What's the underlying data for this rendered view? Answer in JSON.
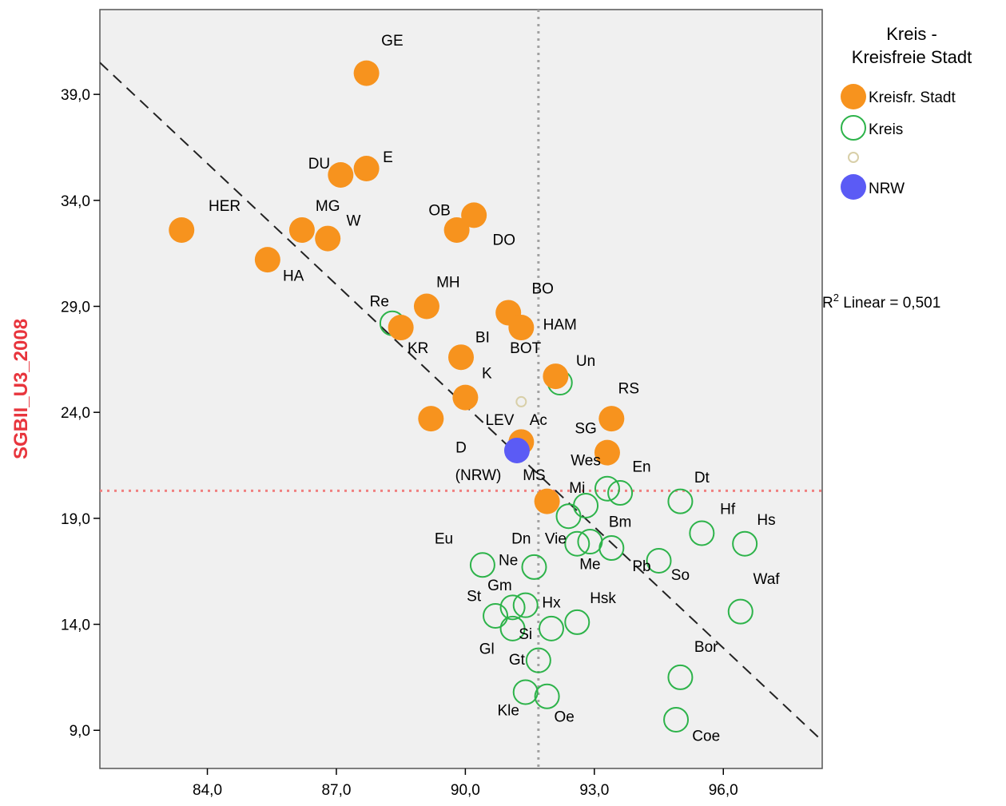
{
  "chart_data": {
    "type": "scatter",
    "title": "",
    "xlabel": "",
    "ylabel": "SGBII_U3_2008",
    "xlim": [
      81.5,
      98.3
    ],
    "ylim": [
      7.2,
      43.0
    ],
    "xticks": [
      "84,0",
      "87,0",
      "90,0",
      "93,0",
      "96,0"
    ],
    "xtick_values": [
      84,
      87,
      90,
      93,
      96
    ],
    "yticks": [
      "9,0",
      "14,0",
      "19,0",
      "24,0",
      "29,0",
      "34,0",
      "39,0"
    ],
    "ytick_values": [
      9,
      14,
      19,
      24,
      29,
      34,
      39
    ],
    "reference_lines": {
      "x_mean": 91.7,
      "y_mean": 20.3
    },
    "fit_line": {
      "label": "R² Linear = 0,501",
      "from": [
        81.5,
        40.5
      ],
      "to": [
        98.3,
        8.5
      ]
    },
    "legend": {
      "title_line1": "Kreis -",
      "title_line2": "Kreisfreie Stadt",
      "placement": "top-right",
      "entries": [
        {
          "label": "Kreisfr. Stadt",
          "marker": "filled",
          "color": "#f7931e"
        },
        {
          "label": "Kreis",
          "marker": "hollow",
          "color": "#2db34a"
        },
        {
          "label": "",
          "marker": "hollow-small",
          "color": "#d8cfa8"
        },
        {
          "label": "NRW",
          "marker": "filled",
          "color": "#5b5bf5"
        }
      ]
    },
    "colors": {
      "stadt": "#f7931e",
      "kreis": "#2db34a",
      "blank": "#d8cfa8",
      "nrw": "#5b5bf5",
      "y_ref": "#f08080",
      "x_ref": "#a0a0a0",
      "ylabel": "#e8353d",
      "plot_bg": "#f0f0f0"
    },
    "series": [
      {
        "name": "Kreisfr. Stadt",
        "points": [
          {
            "x": 87.7,
            "y": 40.0
          },
          {
            "x": 87.7,
            "y": 35.5
          },
          {
            "x": 87.1,
            "y": 35.2
          },
          {
            "x": 83.4,
            "y": 32.6
          },
          {
            "x": 86.2,
            "y": 32.6
          },
          {
            "x": 86.8,
            "y": 32.2
          },
          {
            "x": 85.4,
            "y": 31.2
          },
          {
            "x": 89.8,
            "y": 32.6
          },
          {
            "x": 90.2,
            "y": 33.3
          },
          {
            "x": 89.1,
            "y": 29.0
          },
          {
            "x": 91.0,
            "y": 28.7
          },
          {
            "x": 91.3,
            "y": 28.0
          },
          {
            "x": 88.5,
            "y": 28.0
          },
          {
            "x": 89.9,
            "y": 26.6
          },
          {
            "x": 92.1,
            "y": 25.7
          },
          {
            "x": 90.0,
            "y": 24.7
          },
          {
            "x": 89.2,
            "y": 23.7
          },
          {
            "x": 93.4,
            "y": 23.7
          },
          {
            "x": 91.3,
            "y": 22.6
          },
          {
            "x": 93.3,
            "y": 22.1
          },
          {
            "x": 91.9,
            "y": 19.8
          }
        ]
      },
      {
        "name": "Kreis",
        "points": [
          {
            "x": 88.3,
            "y": 28.2
          },
          {
            "x": 92.2,
            "y": 25.4
          },
          {
            "x": 93.3,
            "y": 20.4
          },
          {
            "x": 93.6,
            "y": 20.2
          },
          {
            "x": 92.8,
            "y": 19.6
          },
          {
            "x": 92.4,
            "y": 19.1
          },
          {
            "x": 95.0,
            "y": 19.8
          },
          {
            "x": 95.5,
            "y": 18.3
          },
          {
            "x": 96.5,
            "y": 17.8
          },
          {
            "x": 92.9,
            "y": 17.9
          },
          {
            "x": 92.6,
            "y": 17.8
          },
          {
            "x": 93.4,
            "y": 17.6
          },
          {
            "x": 94.5,
            "y": 17.0
          },
          {
            "x": 90.4,
            "y": 16.8
          },
          {
            "x": 91.6,
            "y": 16.7
          },
          {
            "x": 90.7,
            "y": 14.4
          },
          {
            "x": 91.1,
            "y": 14.8
          },
          {
            "x": 91.4,
            "y": 14.9
          },
          {
            "x": 91.1,
            "y": 13.8
          },
          {
            "x": 92.0,
            "y": 13.8
          },
          {
            "x": 92.6,
            "y": 14.1
          },
          {
            "x": 96.4,
            "y": 14.6
          },
          {
            "x": 91.7,
            "y": 12.3
          },
          {
            "x": 91.4,
            "y": 10.8
          },
          {
            "x": 91.9,
            "y": 10.6
          },
          {
            "x": 95.0,
            "y": 11.5
          },
          {
            "x": 94.9,
            "y": 9.5
          }
        ]
      },
      {
        "name": "",
        "points": [
          {
            "x": 91.3,
            "y": 24.5
          }
        ]
      },
      {
        "name": "NRW",
        "points": [
          {
            "x": 91.2,
            "y": 22.2
          }
        ]
      }
    ],
    "point_labels": [
      {
        "text": "GE",
        "x": 88.3,
        "y": 41.3
      },
      {
        "text": "E",
        "x": 88.2,
        "y": 35.8
      },
      {
        "text": "DU",
        "x": 86.6,
        "y": 35.5
      },
      {
        "text": "HER",
        "x": 84.4,
        "y": 33.5
      },
      {
        "text": "MG",
        "x": 86.8,
        "y": 33.5
      },
      {
        "text": "W",
        "x": 87.4,
        "y": 32.8
      },
      {
        "text": "HA",
        "x": 86.0,
        "y": 30.2
      },
      {
        "text": "OB",
        "x": 89.4,
        "y": 33.3
      },
      {
        "text": "DO",
        "x": 90.9,
        "y": 31.9
      },
      {
        "text": "MH",
        "x": 89.6,
        "y": 29.9
      },
      {
        "text": "BO",
        "x": 91.8,
        "y": 29.6
      },
      {
        "text": "HAM",
        "x": 92.2,
        "y": 27.9
      },
      {
        "text": "Re",
        "x": 88.0,
        "y": 29.0
      },
      {
        "text": "KR",
        "x": 88.9,
        "y": 26.8
      },
      {
        "text": "BI",
        "x": 90.4,
        "y": 27.3
      },
      {
        "text": "BOT",
        "x": 91.4,
        "y": 26.8
      },
      {
        "text": "Un",
        "x": 92.8,
        "y": 26.2
      },
      {
        "text": "K",
        "x": 90.5,
        "y": 25.6
      },
      {
        "text": "RS",
        "x": 93.8,
        "y": 24.9
      },
      {
        "text": "LEV",
        "x": 90.8,
        "y": 23.4
      },
      {
        "text": "Ac",
        "x": 91.7,
        "y": 23.4
      },
      {
        "text": "SG",
        "x": 92.8,
        "y": 23.0
      },
      {
        "text": "D",
        "x": 89.9,
        "y": 22.1
      },
      {
        "text": "Wes",
        "x": 92.8,
        "y": 21.5
      },
      {
        "text": "(NRW)",
        "x": 90.3,
        "y": 20.8
      },
      {
        "text": "MS",
        "x": 91.6,
        "y": 20.8
      },
      {
        "text": "En",
        "x": 94.1,
        "y": 21.2
      },
      {
        "text": "Mi",
        "x": 92.6,
        "y": 20.2
      },
      {
        "text": "Dt",
        "x": 95.5,
        "y": 20.7
      },
      {
        "text": "Hf",
        "x": 96.1,
        "y": 19.2
      },
      {
        "text": "Hs",
        "x": 97.0,
        "y": 18.7
      },
      {
        "text": "Bm",
        "x": 93.6,
        "y": 18.6
      },
      {
        "text": "Eu",
        "x": 89.5,
        "y": 17.8
      },
      {
        "text": "Dn",
        "x": 91.3,
        "y": 17.8
      },
      {
        "text": "Vie",
        "x": 92.1,
        "y": 17.8
      },
      {
        "text": "Ne",
        "x": 91.0,
        "y": 16.8
      },
      {
        "text": "Me",
        "x": 92.9,
        "y": 16.6
      },
      {
        "text": "Pb",
        "x": 94.1,
        "y": 16.5
      },
      {
        "text": "So",
        "x": 95.0,
        "y": 16.1
      },
      {
        "text": "Waf",
        "x": 97.0,
        "y": 15.9
      },
      {
        "text": "St",
        "x": 90.2,
        "y": 15.1
      },
      {
        "text": "Gm",
        "x": 90.8,
        "y": 15.6
      },
      {
        "text": "Hx",
        "x": 92.0,
        "y": 14.8
      },
      {
        "text": "Hsk",
        "x": 93.2,
        "y": 15.0
      },
      {
        "text": "Si",
        "x": 91.4,
        "y": 13.3
      },
      {
        "text": "Gl",
        "x": 90.5,
        "y": 12.6
      },
      {
        "text": "Gt",
        "x": 91.2,
        "y": 12.1
      },
      {
        "text": "Bor",
        "x": 95.6,
        "y": 12.7
      },
      {
        "text": "Kle",
        "x": 91.0,
        "y": 9.7
      },
      {
        "text": "Oe",
        "x": 92.3,
        "y": 9.4
      },
      {
        "text": "Coe",
        "x": 95.6,
        "y": 8.5
      }
    ]
  }
}
